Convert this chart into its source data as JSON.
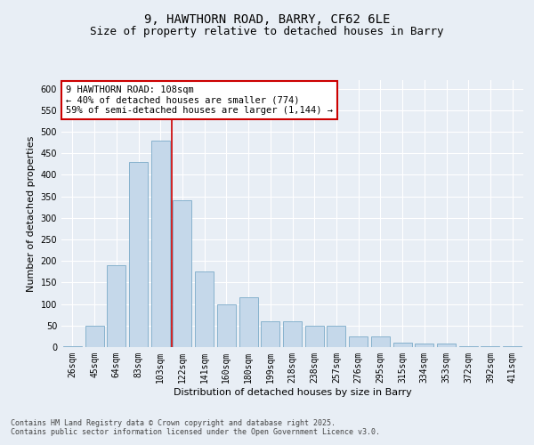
{
  "title_line1": "9, HAWTHORN ROAD, BARRY, CF62 6LE",
  "title_line2": "Size of property relative to detached houses in Barry",
  "xlabel": "Distribution of detached houses by size in Barry",
  "ylabel": "Number of detached properties",
  "categories": [
    "26sqm",
    "45sqm",
    "64sqm",
    "83sqm",
    "103sqm",
    "122sqm",
    "141sqm",
    "160sqm",
    "180sqm",
    "199sqm",
    "218sqm",
    "238sqm",
    "257sqm",
    "276sqm",
    "295sqm",
    "315sqm",
    "334sqm",
    "353sqm",
    "372sqm",
    "392sqm",
    "411sqm"
  ],
  "values": [
    3,
    50,
    190,
    430,
    480,
    340,
    175,
    100,
    115,
    60,
    60,
    50,
    50,
    25,
    25,
    10,
    8,
    8,
    2,
    2,
    2
  ],
  "bar_color": "#c5d8ea",
  "bar_edge_color": "#7aaac8",
  "vline_color": "#cc0000",
  "vline_x": 4.5,
  "annotation_text": "9 HAWTHORN ROAD: 108sqm\n← 40% of detached houses are smaller (774)\n59% of semi-detached houses are larger (1,144) →",
  "annotation_box_color": "#ffffff",
  "annotation_box_edge": "#cc0000",
  "ylim": [
    0,
    620
  ],
  "yticks": [
    0,
    50,
    100,
    150,
    200,
    250,
    300,
    350,
    400,
    450,
    500,
    550,
    600
  ],
  "background_color": "#e8eef5",
  "plot_bg_color": "#e8eef5",
  "grid_color": "#ffffff",
  "footer_text": "Contains HM Land Registry data © Crown copyright and database right 2025.\nContains public sector information licensed under the Open Government Licence v3.0.",
  "title_fontsize": 10,
  "subtitle_fontsize": 9,
  "axis_label_fontsize": 8,
  "tick_label_fontsize": 7,
  "annotation_fontsize": 7.5
}
